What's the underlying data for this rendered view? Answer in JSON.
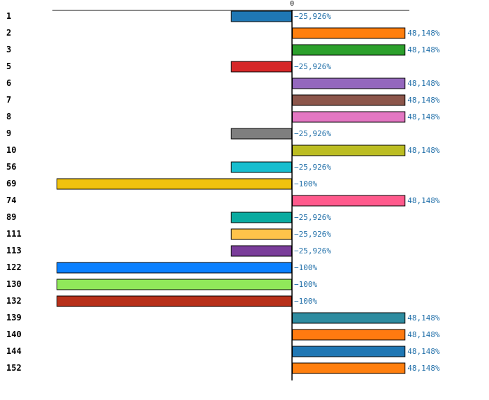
{
  "chart_data": {
    "type": "bar",
    "orientation": "horizontal",
    "title": "",
    "xlabel": "",
    "ylabel": "",
    "xlim": [
      -100,
      50
    ],
    "zero_label": "0",
    "value_label_color": "#1f6ea8",
    "categories": [
      "1",
      "2",
      "3",
      "5",
      "6",
      "7",
      "8",
      "9",
      "10",
      "56",
      "69",
      "74",
      "89",
      "111",
      "113",
      "122",
      "130",
      "132",
      "139",
      "140",
      "144",
      "152"
    ],
    "values": [
      -25.926,
      48.148,
      48.148,
      -25.926,
      48.148,
      48.148,
      48.148,
      -25.926,
      48.148,
      -25.926,
      -100,
      48.148,
      -25.926,
      -25.926,
      -25.926,
      -100,
      -100,
      -100,
      48.148,
      48.148,
      48.148,
      48.148
    ],
    "value_labels": [
      "−25,926%",
      "48,148%",
      "48,148%",
      "−25,926%",
      "48,148%",
      "48,148%",
      "48,148%",
      "−25,926%",
      "48,148%",
      "−25,926%",
      "−100%",
      "48,148%",
      "−25,926%",
      "−25,926%",
      "−25,926%",
      "−100%",
      "−100%",
      "−100%",
      "48,148%",
      "48,148%",
      "48,148%",
      "48,148%"
    ],
    "colors": [
      "#1f77b4",
      "#ff7f0e",
      "#2ca02c",
      "#d62728",
      "#9467bd",
      "#8c564b",
      "#e377c2",
      "#7f7f7f",
      "#bcbd22",
      "#17becf",
      "#f0c20e",
      "#ff5a8c",
      "#0aaba0",
      "#ffc34a",
      "#7a3d9a",
      "#0a80ff",
      "#90e85a",
      "#b8301a",
      "#2e8ca0",
      "#ff7a10",
      "#1f77b4",
      "#ff7f0e"
    ]
  }
}
